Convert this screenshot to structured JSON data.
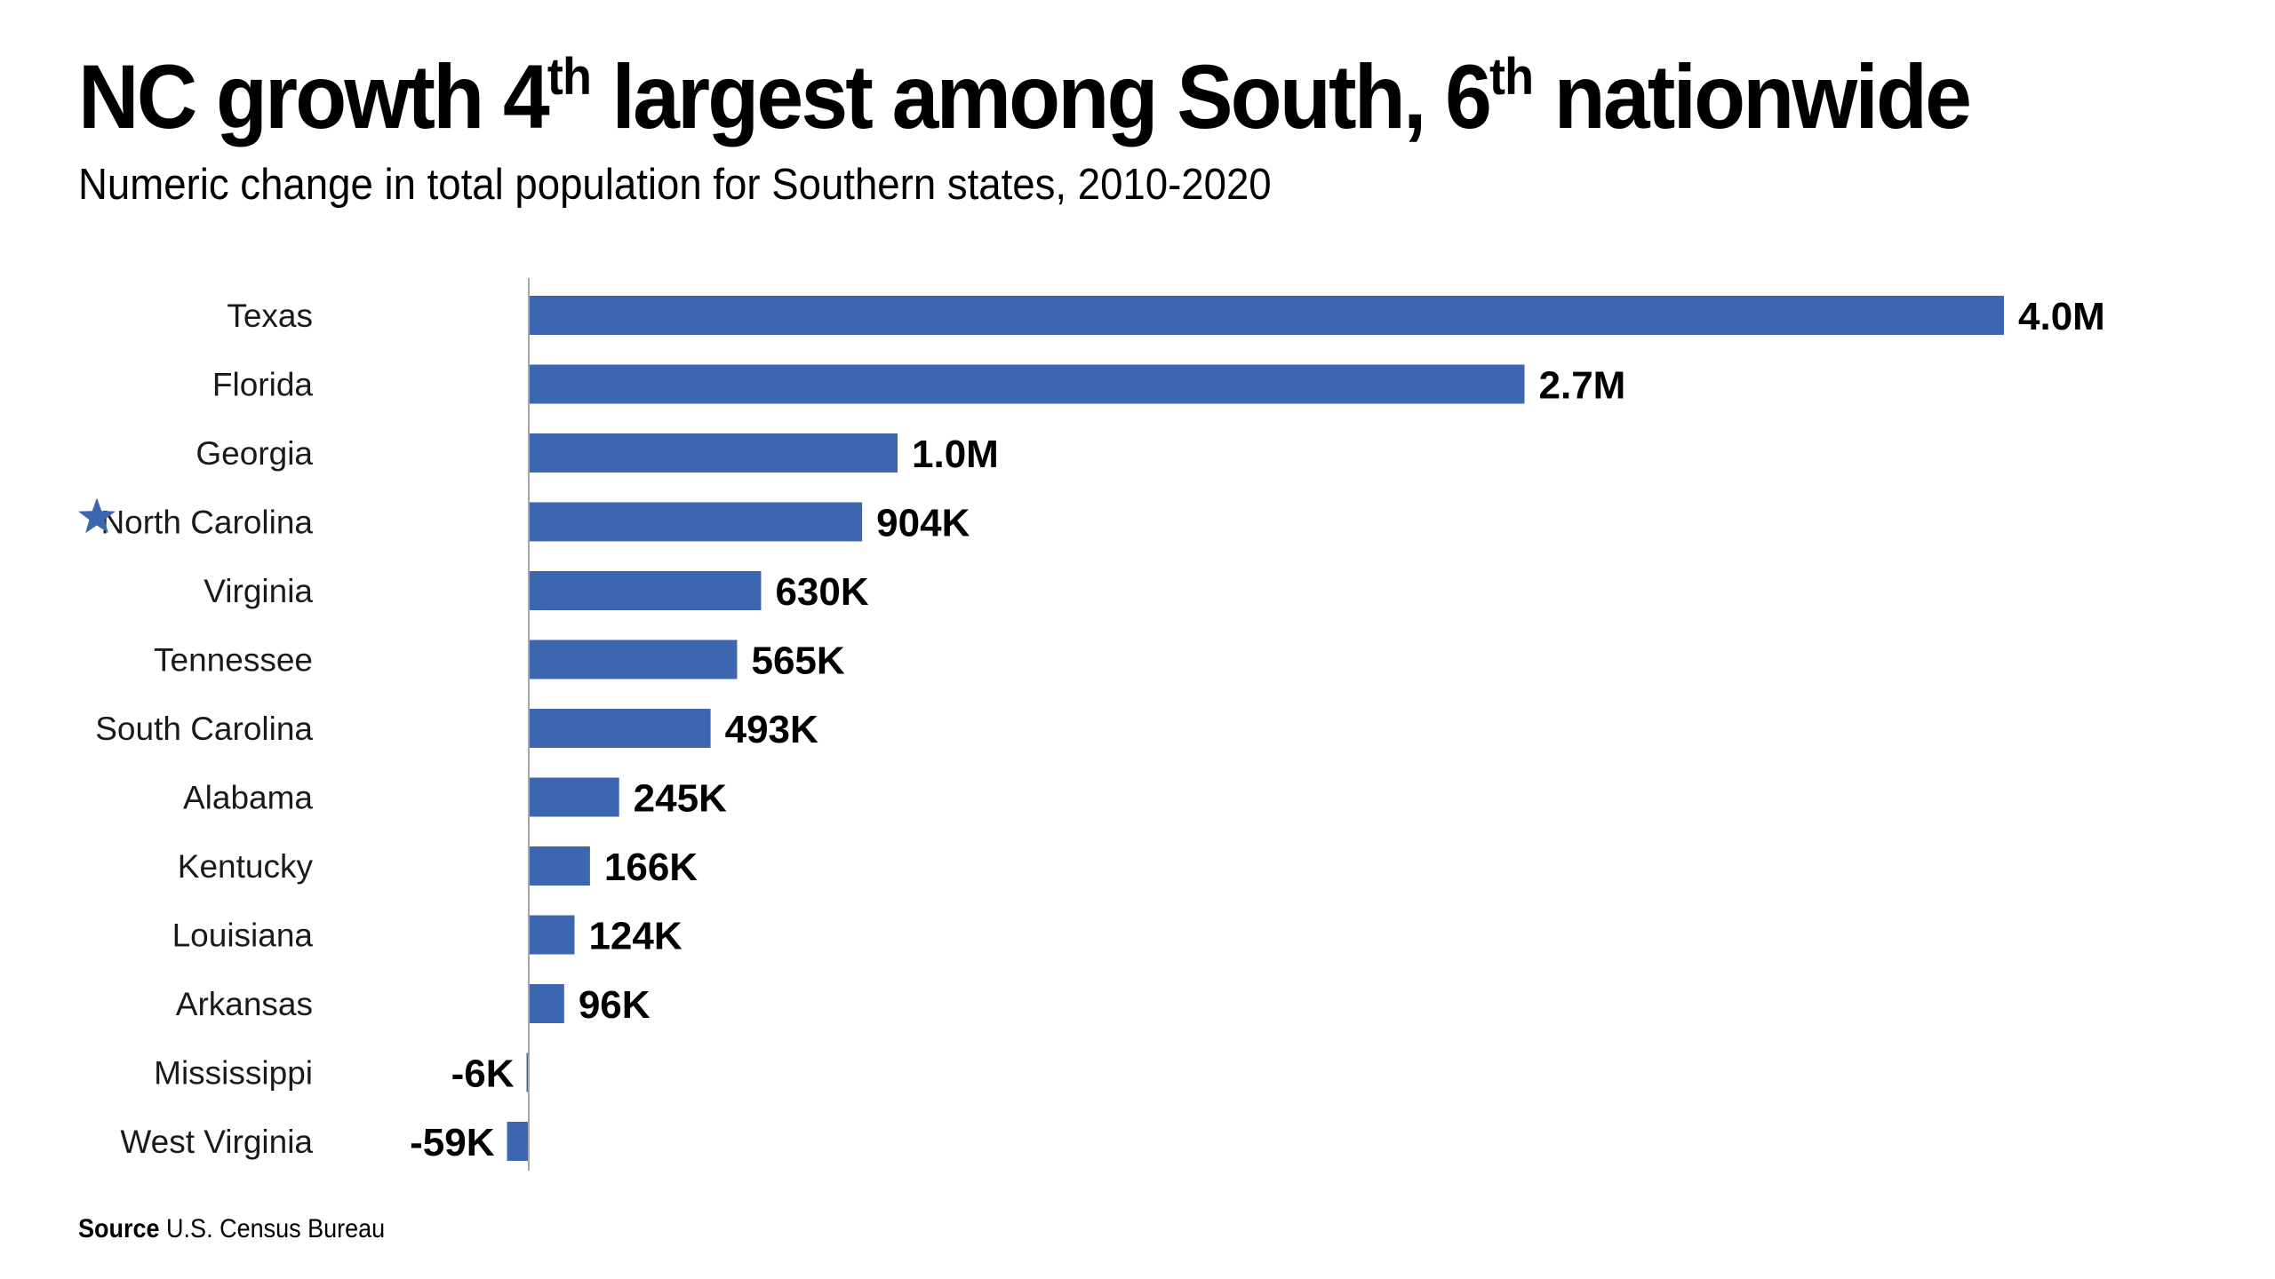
{
  "title": {
    "part1": "NC growth 4",
    "sup1": "th",
    "part2": " largest among South, 6",
    "sup2": "th",
    "part3": " nationwide"
  },
  "subtitle": "Numeric change in total population for Southern states, 2010-2020",
  "source": {
    "label": "Source",
    "text": "U.S. Census Bureau"
  },
  "colors": {
    "bar": "#3d66b0",
    "axis": "#a6a6a6",
    "star": "#3d66b0"
  },
  "highlight": {
    "category": "North Carolina",
    "icon": "star-icon"
  },
  "chart_data": {
    "type": "bar",
    "orientation": "horizontal",
    "categories": [
      "Texas",
      "Florida",
      "Georgia",
      "North Carolina",
      "Virginia",
      "Tennessee",
      "South Carolina",
      "Alabama",
      "Kentucky",
      "Louisiana",
      "Arkansas",
      "Mississippi",
      "West Virginia"
    ],
    "values": [
      4000000,
      2700000,
      1000000,
      904000,
      630000,
      565000,
      493000,
      245000,
      166000,
      124000,
      96000,
      -6000,
      -59000
    ],
    "value_labels": [
      "4.0M",
      "2.7M",
      "1.0M",
      "904K",
      "630K",
      "565K",
      "493K",
      "245K",
      "166K",
      "124K",
      "96K",
      "-6K",
      "-59K"
    ],
    "title": "NC growth 4th largest among South, 6th nationwide",
    "xlabel": "",
    "ylabel": "",
    "grid": false,
    "legend": "none"
  }
}
